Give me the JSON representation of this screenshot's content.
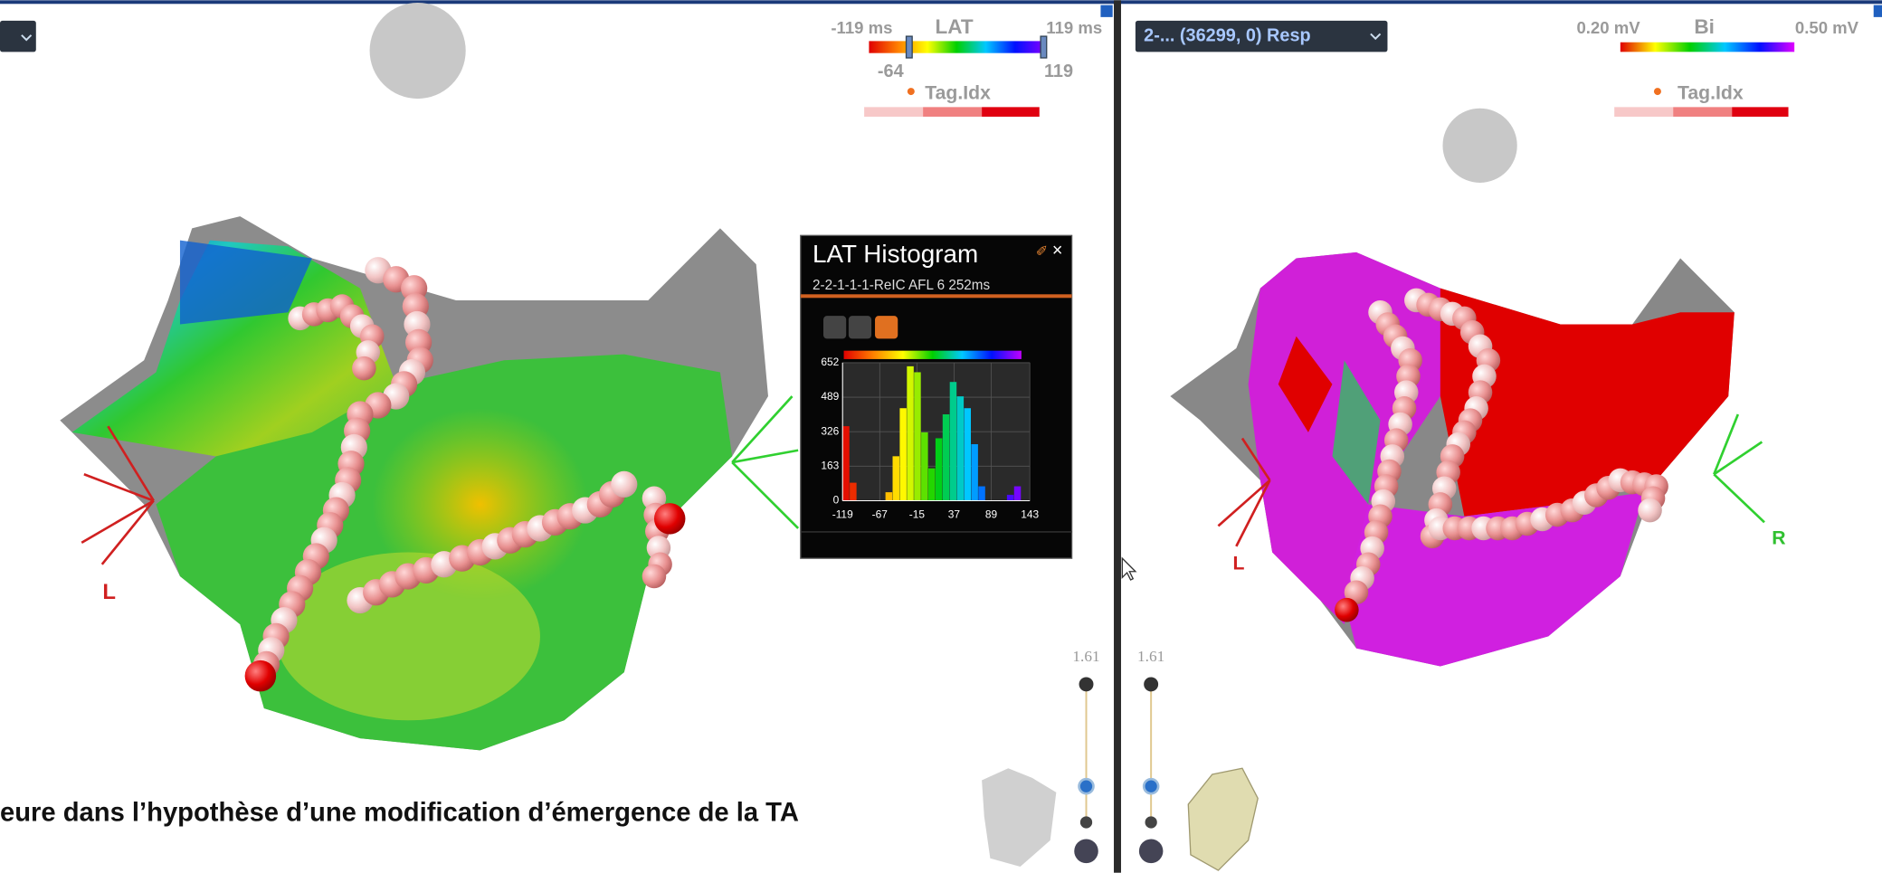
{
  "left_panel": {
    "lat_scale": {
      "min_label": "-119 ms",
      "title": "LAT",
      "max_label": "119 ms",
      "low_marker": "-64",
      "high_marker": "119",
      "colormap": [
        "#e00000",
        "#ff8000",
        "#ffff00",
        "#00d000",
        "#00c8ff",
        "#0010ff",
        "#8000ff"
      ]
    },
    "tag_label": "Tag.Idx",
    "orientation_label": "L",
    "zoom": "1.61"
  },
  "histogram_window": {
    "title": "LAT Histogram",
    "subtitle": "2-2-1-1-1-ReIC AFL 6 252ms",
    "chart_data": {
      "type": "histogram",
      "bins": [
        -119,
        -109,
        -99,
        -89,
        -79,
        -69,
        -59,
        -49,
        -39,
        -29,
        -19,
        -9,
        1,
        11,
        21,
        31,
        41,
        51,
        61,
        71,
        81,
        91,
        101,
        111,
        121,
        131,
        141
      ],
      "counts": [
        352,
        85,
        0,
        0,
        0,
        0,
        40,
        210,
        437,
        635,
        607,
        323,
        153,
        295,
        408,
        561,
        493,
        437,
        267,
        68,
        0,
        0,
        0,
        28,
        68,
        0
      ],
      "xlim": [
        -119,
        143
      ],
      "ylim": [
        0,
        652
      ],
      "xticks": [
        -119,
        -67,
        -15,
        37,
        89,
        143
      ],
      "yticks": [
        0,
        163,
        326,
        489,
        652
      ],
      "grid": true,
      "colormap": [
        "#e00000",
        "#ff8000",
        "#ffff00",
        "#00d000",
        "#00c8ff",
        "#0010ff",
        "#c000ff"
      ]
    }
  },
  "right_panel": {
    "selector": "2-... (36299, 0) Resp",
    "bi_scale": {
      "min_label": "0.20 mV",
      "title": "Bi",
      "max_label": "0.50 mV",
      "colormap": [
        "#e00000",
        "#ffff00",
        "#00d000",
        "#00c8ff",
        "#0010ff",
        "#e000ff"
      ]
    },
    "tag_label": "Tag.Idx",
    "left_label": "L",
    "right_label": "R",
    "zoom": "1.61"
  },
  "caption": "eure dans l’hypothèse d’une modification d’émergence de la TA"
}
